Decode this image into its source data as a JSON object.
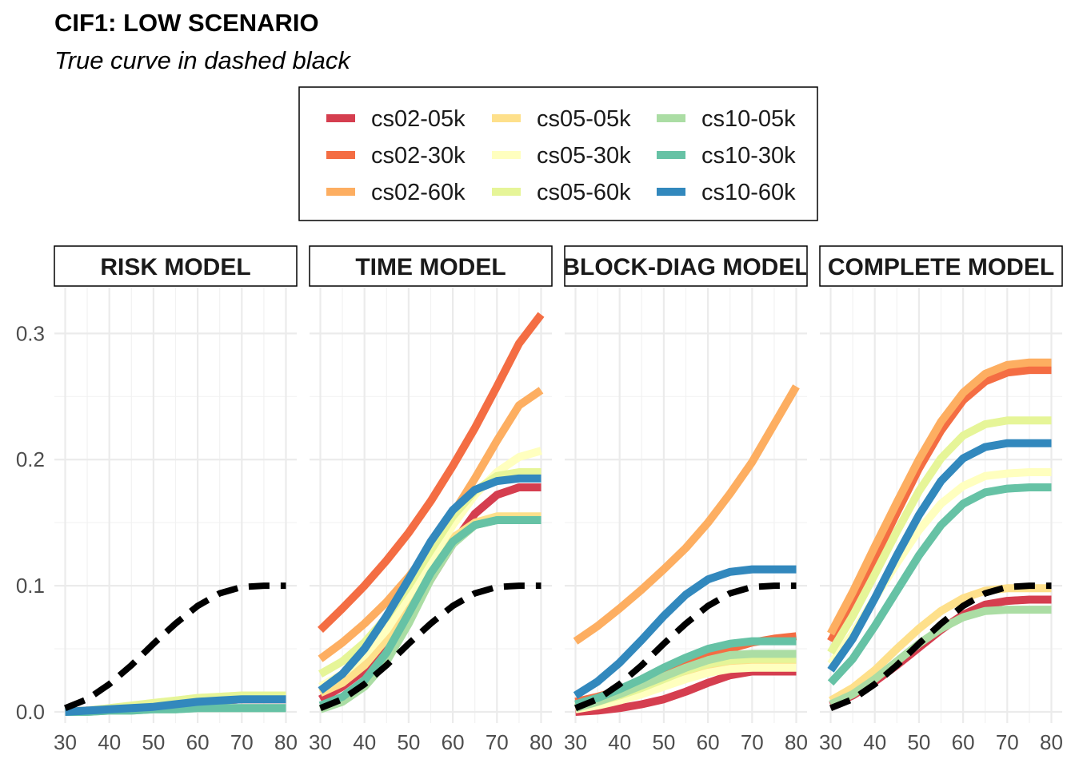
{
  "chart_data": {
    "type": "line",
    "title": "CIF1: LOW SCENARIO",
    "subtitle": "True curve in dashed black",
    "xlabel": "",
    "ylabel": "",
    "xlim": [
      30,
      80
    ],
    "ylim": [
      0,
      0.33
    ],
    "x_ticks": [
      30,
      40,
      50,
      60,
      70,
      80
    ],
    "x_tick_labels": [
      "30",
      "40",
      "50",
      "60",
      "70",
      "80"
    ],
    "y_ticks": [
      0.0,
      0.1,
      0.2,
      0.3
    ],
    "y_tick_labels": [
      "0.0",
      "0.1",
      "0.2",
      "0.3"
    ],
    "grid": true,
    "legend_position": "top",
    "x": [
      30,
      35,
      40,
      45,
      50,
      55,
      60,
      65,
      70,
      75,
      80
    ],
    "legend": [
      {
        "name": "cs02-05k",
        "color": "#D53E4F"
      },
      {
        "name": "cs02-30k",
        "color": "#F46D43"
      },
      {
        "name": "cs02-60k",
        "color": "#FDAE61"
      },
      {
        "name": "cs05-05k",
        "color": "#FEE08B"
      },
      {
        "name": "cs05-30k",
        "color": "#FFFFBF"
      },
      {
        "name": "cs05-60k",
        "color": "#E6F598"
      },
      {
        "name": "cs10-05k",
        "color": "#ABDDA4"
      },
      {
        "name": "cs10-30k",
        "color": "#66C2A5"
      },
      {
        "name": "cs10-60k",
        "color": "#3288BD"
      }
    ],
    "true_curve": [
      0.003,
      0.01,
      0.022,
      0.037,
      0.054,
      0.07,
      0.084,
      0.094,
      0.099,
      0.1,
      0.1
    ],
    "panels": [
      {
        "label": "RISK MODEL",
        "series": [
          {
            "name": "cs02-05k",
            "values": [
              0.0,
              0.001,
              0.002,
              0.003,
              0.004,
              0.006,
              0.008,
              0.009,
              0.01,
              0.01,
              0.01
            ]
          },
          {
            "name": "cs02-30k",
            "values": [
              0.0,
              0.001,
              0.002,
              0.003,
              0.004,
              0.006,
              0.008,
              0.009,
              0.01,
              0.01,
              0.01
            ]
          },
          {
            "name": "cs02-60k",
            "values": [
              0.0,
              0.001,
              0.002,
              0.004,
              0.005,
              0.007,
              0.009,
              0.01,
              0.011,
              0.011,
              0.011
            ]
          },
          {
            "name": "cs05-05k",
            "values": [
              0.0,
              0.001,
              0.002,
              0.004,
              0.006,
              0.008,
              0.01,
              0.011,
              0.012,
              0.012,
              0.012
            ]
          },
          {
            "name": "cs05-30k",
            "values": [
              0.0,
              0.001,
              0.003,
              0.005,
              0.007,
              0.009,
              0.011,
              0.012,
              0.013,
              0.013,
              0.013
            ]
          },
          {
            "name": "cs05-60k",
            "values": [
              0.0,
              0.001,
              0.003,
              0.005,
              0.007,
              0.009,
              0.011,
              0.012,
              0.013,
              0.013,
              0.013
            ]
          },
          {
            "name": "cs10-05k",
            "values": [
              0.0,
              0.0,
              0.001,
              0.001,
              0.002,
              0.002,
              0.003,
              0.003,
              0.003,
              0.003,
              0.003
            ]
          },
          {
            "name": "cs10-30k",
            "values": [
              0.0,
              0.0,
              0.001,
              0.001,
              0.002,
              0.002,
              0.003,
              0.003,
              0.003,
              0.003,
              0.003
            ]
          },
          {
            "name": "cs10-60k",
            "values": [
              0.0,
              0.001,
              0.002,
              0.003,
              0.004,
              0.006,
              0.008,
              0.009,
              0.01,
              0.01,
              0.01
            ]
          }
        ]
      },
      {
        "label": "TIME MODEL",
        "series": [
          {
            "name": "cs02-05k",
            "values": [
              0.01,
              0.02,
              0.033,
              0.052,
              0.077,
              0.105,
              0.133,
              0.157,
              0.172,
              0.178,
              0.178
            ]
          },
          {
            "name": "cs02-30k",
            "values": [
              0.065,
              0.082,
              0.1,
              0.12,
              0.142,
              0.167,
              0.195,
              0.225,
              0.258,
              0.292,
              0.315
            ]
          },
          {
            "name": "cs02-60k",
            "values": [
              0.042,
              0.055,
              0.07,
              0.087,
              0.107,
              0.13,
              0.157,
              0.185,
              0.215,
              0.243,
              0.255
            ]
          },
          {
            "name": "cs05-05k",
            "values": [
              0.015,
              0.023,
              0.037,
              0.058,
              0.087,
              0.117,
              0.138,
              0.15,
              0.155,
              0.155,
              0.155
            ]
          },
          {
            "name": "cs05-30k",
            "values": [
              0.02,
              0.03,
              0.045,
              0.065,
              0.092,
              0.12,
              0.148,
              0.172,
              0.19,
              0.202,
              0.207
            ]
          },
          {
            "name": "cs05-60k",
            "values": [
              0.03,
              0.04,
              0.055,
              0.075,
              0.1,
              0.128,
              0.155,
              0.175,
              0.187,
              0.19,
              0.19
            ]
          },
          {
            "name": "cs10-05k",
            "values": [
              0.002,
              0.008,
              0.02,
              0.04,
              0.07,
              0.105,
              0.133,
              0.148,
              0.152,
              0.152,
              0.152
            ]
          },
          {
            "name": "cs10-30k",
            "values": [
              0.005,
              0.012,
              0.025,
              0.047,
              0.078,
              0.11,
              0.135,
              0.148,
              0.152,
              0.152,
              0.152
            ]
          },
          {
            "name": "cs10-60k",
            "values": [
              0.017,
              0.03,
              0.05,
              0.076,
              0.105,
              0.135,
              0.16,
              0.176,
              0.183,
              0.185,
              0.185
            ]
          }
        ]
      },
      {
        "label": "BLOCK-DIAG MODEL",
        "series": [
          {
            "name": "cs02-05k",
            "values": [
              0.0,
              0.001,
              0.003,
              0.006,
              0.01,
              0.016,
              0.023,
              0.029,
              0.032,
              0.032,
              0.032
            ]
          },
          {
            "name": "cs02-30k",
            "values": [
              0.008,
              0.012,
              0.017,
              0.023,
              0.03,
              0.037,
              0.044,
              0.05,
              0.055,
              0.058,
              0.06
            ]
          },
          {
            "name": "cs02-60k",
            "values": [
              0.056,
              0.068,
              0.082,
              0.097,
              0.113,
              0.13,
              0.15,
              0.173,
              0.198,
              0.228,
              0.258
            ]
          },
          {
            "name": "cs05-05k",
            "values": [
              0.003,
              0.006,
              0.011,
              0.016,
              0.022,
              0.028,
              0.033,
              0.036,
              0.037,
              0.037,
              0.037
            ]
          },
          {
            "name": "cs05-30k",
            "values": [
              0.002,
              0.005,
              0.009,
              0.014,
              0.02,
              0.026,
              0.031,
              0.034,
              0.035,
              0.035,
              0.035
            ]
          },
          {
            "name": "cs05-60k",
            "values": [
              0.004,
              0.008,
              0.013,
              0.019,
              0.026,
              0.033,
              0.038,
              0.041,
              0.042,
              0.042,
              0.042
            ]
          },
          {
            "name": "cs10-05k",
            "values": [
              0.003,
              0.008,
              0.014,
              0.021,
              0.028,
              0.035,
              0.041,
              0.045,
              0.046,
              0.046,
              0.046
            ]
          },
          {
            "name": "cs10-30k",
            "values": [
              0.006,
              0.011,
              0.018,
              0.026,
              0.035,
              0.043,
              0.05,
              0.054,
              0.056,
              0.056,
              0.056
            ]
          },
          {
            "name": "cs10-60k",
            "values": [
              0.013,
              0.024,
              0.039,
              0.057,
              0.076,
              0.093,
              0.105,
              0.111,
              0.113,
              0.113,
              0.113
            ]
          }
        ]
      },
      {
        "label": "COMPLETE MODEL",
        "series": [
          {
            "name": "cs02-05k",
            "values": [
              0.005,
              0.013,
              0.024,
              0.037,
              0.051,
              0.065,
              0.077,
              0.085,
              0.088,
              0.089,
              0.089
            ]
          },
          {
            "name": "cs02-30k",
            "values": [
              0.056,
              0.087,
              0.122,
              0.158,
              0.193,
              0.223,
              0.247,
              0.262,
              0.269,
              0.271,
              0.271
            ]
          },
          {
            "name": "cs02-60k",
            "values": [
              0.062,
              0.095,
              0.131,
              0.166,
              0.2,
              0.23,
              0.253,
              0.268,
              0.275,
              0.277,
              0.277
            ]
          },
          {
            "name": "cs05-05k",
            "values": [
              0.009,
              0.019,
              0.033,
              0.05,
              0.066,
              0.08,
              0.09,
              0.096,
              0.098,
              0.098,
              0.098
            ]
          },
          {
            "name": "cs05-30k",
            "values": [
              0.038,
              0.062,
              0.09,
              0.118,
              0.144,
              0.165,
              0.179,
              0.187,
              0.189,
              0.19,
              0.19
            ]
          },
          {
            "name": "cs05-60k",
            "values": [
              0.047,
              0.076,
              0.109,
              0.143,
              0.175,
              0.201,
              0.219,
              0.228,
              0.231,
              0.231,
              0.231
            ]
          },
          {
            "name": "cs10-05k",
            "values": [
              0.006,
              0.014,
              0.026,
              0.04,
              0.054,
              0.066,
              0.075,
              0.08,
              0.081,
              0.081,
              0.081
            ]
          },
          {
            "name": "cs10-30k",
            "values": [
              0.023,
              0.042,
              0.068,
              0.096,
              0.124,
              0.148,
              0.165,
              0.174,
              0.177,
              0.178,
              0.178
            ]
          },
          {
            "name": "cs10-60k",
            "values": [
              0.033,
              0.058,
              0.09,
              0.124,
              0.156,
              0.183,
              0.201,
              0.21,
              0.213,
              0.213,
              0.213
            ]
          }
        ]
      }
    ]
  }
}
